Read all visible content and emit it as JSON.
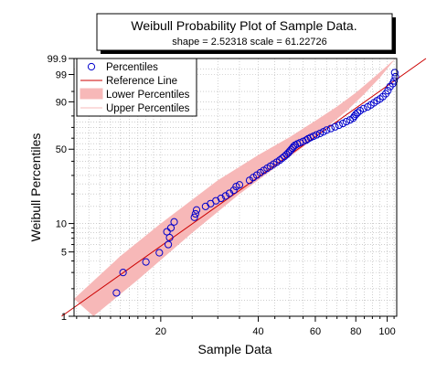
{
  "chart_data": {
    "type": "scatter",
    "title": "Weibull Probability Plot of Sample Data.",
    "subtitle": "shape = 2.52318  scale = 61.22726",
    "xlabel": "Sample Data",
    "ylabel": "Weibull Percentiles",
    "x_scale": "log",
    "y_scale": "weibull",
    "xlim": [
      10.8,
      107
    ],
    "ylim": [
      1,
      99.9
    ],
    "x_ticks": [
      20,
      40,
      60,
      80,
      100
    ],
    "y_ticks": [
      1,
      5,
      10,
      50,
      90,
      99,
      99.9
    ],
    "grid": true,
    "legend": {
      "position": "top-left",
      "entries": [
        "Percentiles",
        "Reference Line",
        "Lower Percentiles",
        "Upper Percentiles"
      ]
    },
    "colors": {
      "points": "#0000cc",
      "reference_line": "#cc0000",
      "band_fill": "#f7b8b8",
      "grid": "#b0b0b0"
    },
    "shape": 2.52318,
    "scale": 61.22726,
    "band": {
      "lower": [
        [
          12.4,
          1
        ],
        [
          17,
          2.5
        ],
        [
          25,
          8
        ],
        [
          35,
          20
        ],
        [
          45,
          35
        ],
        [
          55,
          52
        ],
        [
          65,
          70
        ],
        [
          75,
          84
        ],
        [
          85,
          94
        ],
        [
          95,
          98.6
        ],
        [
          102,
          99.7
        ],
        [
          106,
          99.9
        ]
      ],
      "upper": [
        [
          10.8,
          1.55
        ],
        [
          15,
          4.5
        ],
        [
          20,
          10
        ],
        [
          30,
          27
        ],
        [
          40,
          45
        ],
        [
          50,
          61
        ],
        [
          60,
          76
        ],
        [
          70,
          87
        ],
        [
          80,
          94.5
        ],
        [
          90,
          98.4
        ],
        [
          106,
          99.9
        ]
      ]
    },
    "series": [
      {
        "name": "Percentiles",
        "points": [
          [
            14.6,
            1.8
          ],
          [
            15.3,
            3.0
          ],
          [
            18.0,
            3.9
          ],
          [
            19.8,
            4.9
          ],
          [
            21.1,
            6.0
          ],
          [
            21.3,
            7.1
          ],
          [
            20.9,
            8.2
          ],
          [
            21.5,
            9.0
          ],
          [
            22.0,
            10.4
          ],
          [
            25.4,
            11.6
          ],
          [
            25.6,
            12.6
          ],
          [
            25.8,
            13.8
          ],
          [
            27.5,
            15.0
          ],
          [
            28.5,
            16.0
          ],
          [
            29.6,
            17.1
          ],
          [
            30.7,
            18.1
          ],
          [
            31.7,
            19.1
          ],
          [
            32.6,
            20.3
          ],
          [
            33.6,
            21.7
          ],
          [
            34.2,
            23.6
          ],
          [
            35.0,
            24.5
          ],
          [
            37.6,
            27.0
          ],
          [
            38.6,
            28.7
          ],
          [
            39.6,
            30.2
          ],
          [
            40.6,
            31.8
          ],
          [
            41.6,
            33.3
          ],
          [
            42.6,
            34.8
          ],
          [
            43.6,
            36.3
          ],
          [
            44.6,
            37.8
          ],
          [
            45.6,
            39.3
          ],
          [
            46.6,
            40.9
          ],
          [
            47.4,
            42.4
          ],
          [
            48.2,
            43.9
          ],
          [
            48.9,
            45.4
          ],
          [
            49.5,
            46.8
          ],
          [
            50.0,
            48.2
          ],
          [
            50.5,
            49.6
          ],
          [
            51.0,
            51.0
          ],
          [
            51.4,
            52.3
          ],
          [
            52.0,
            53.6
          ],
          [
            52.8,
            54.7
          ],
          [
            53.8,
            55.8
          ],
          [
            55.0,
            57.0
          ],
          [
            56.2,
            58.2
          ],
          [
            57.0,
            59.4
          ],
          [
            58.0,
            60.6
          ],
          [
            59.2,
            61.8
          ],
          [
            60.5,
            63.1
          ],
          [
            62.0,
            64.4
          ],
          [
            63.5,
            65.9
          ],
          [
            65.0,
            67.5
          ],
          [
            67.0,
            69.0
          ],
          [
            69.0,
            70.5
          ],
          [
            71.0,
            72.0
          ],
          [
            73.0,
            73.6
          ],
          [
            74.8,
            75.2
          ],
          [
            76.8,
            76.7
          ],
          [
            78.5,
            78.2
          ],
          [
            79.2,
            79.8
          ],
          [
            80.0,
            81.2
          ],
          [
            81.0,
            82.6
          ],
          [
            82.5,
            84.1
          ],
          [
            84.5,
            85.6
          ],
          [
            87.0,
            86.8
          ],
          [
            89.0,
            88.1
          ],
          [
            91.0,
            89.4
          ],
          [
            93.0,
            90.6
          ],
          [
            95.0,
            91.6
          ],
          [
            97.0,
            92.8
          ],
          [
            99.0,
            94.1
          ],
          [
            100.5,
            95.3
          ],
          [
            102.0,
            96.6
          ],
          [
            104.0,
            97.4
          ],
          [
            105.0,
            98.0
          ],
          [
            106.0,
            98.7
          ],
          [
            105.5,
            99.2
          ]
        ]
      }
    ]
  }
}
